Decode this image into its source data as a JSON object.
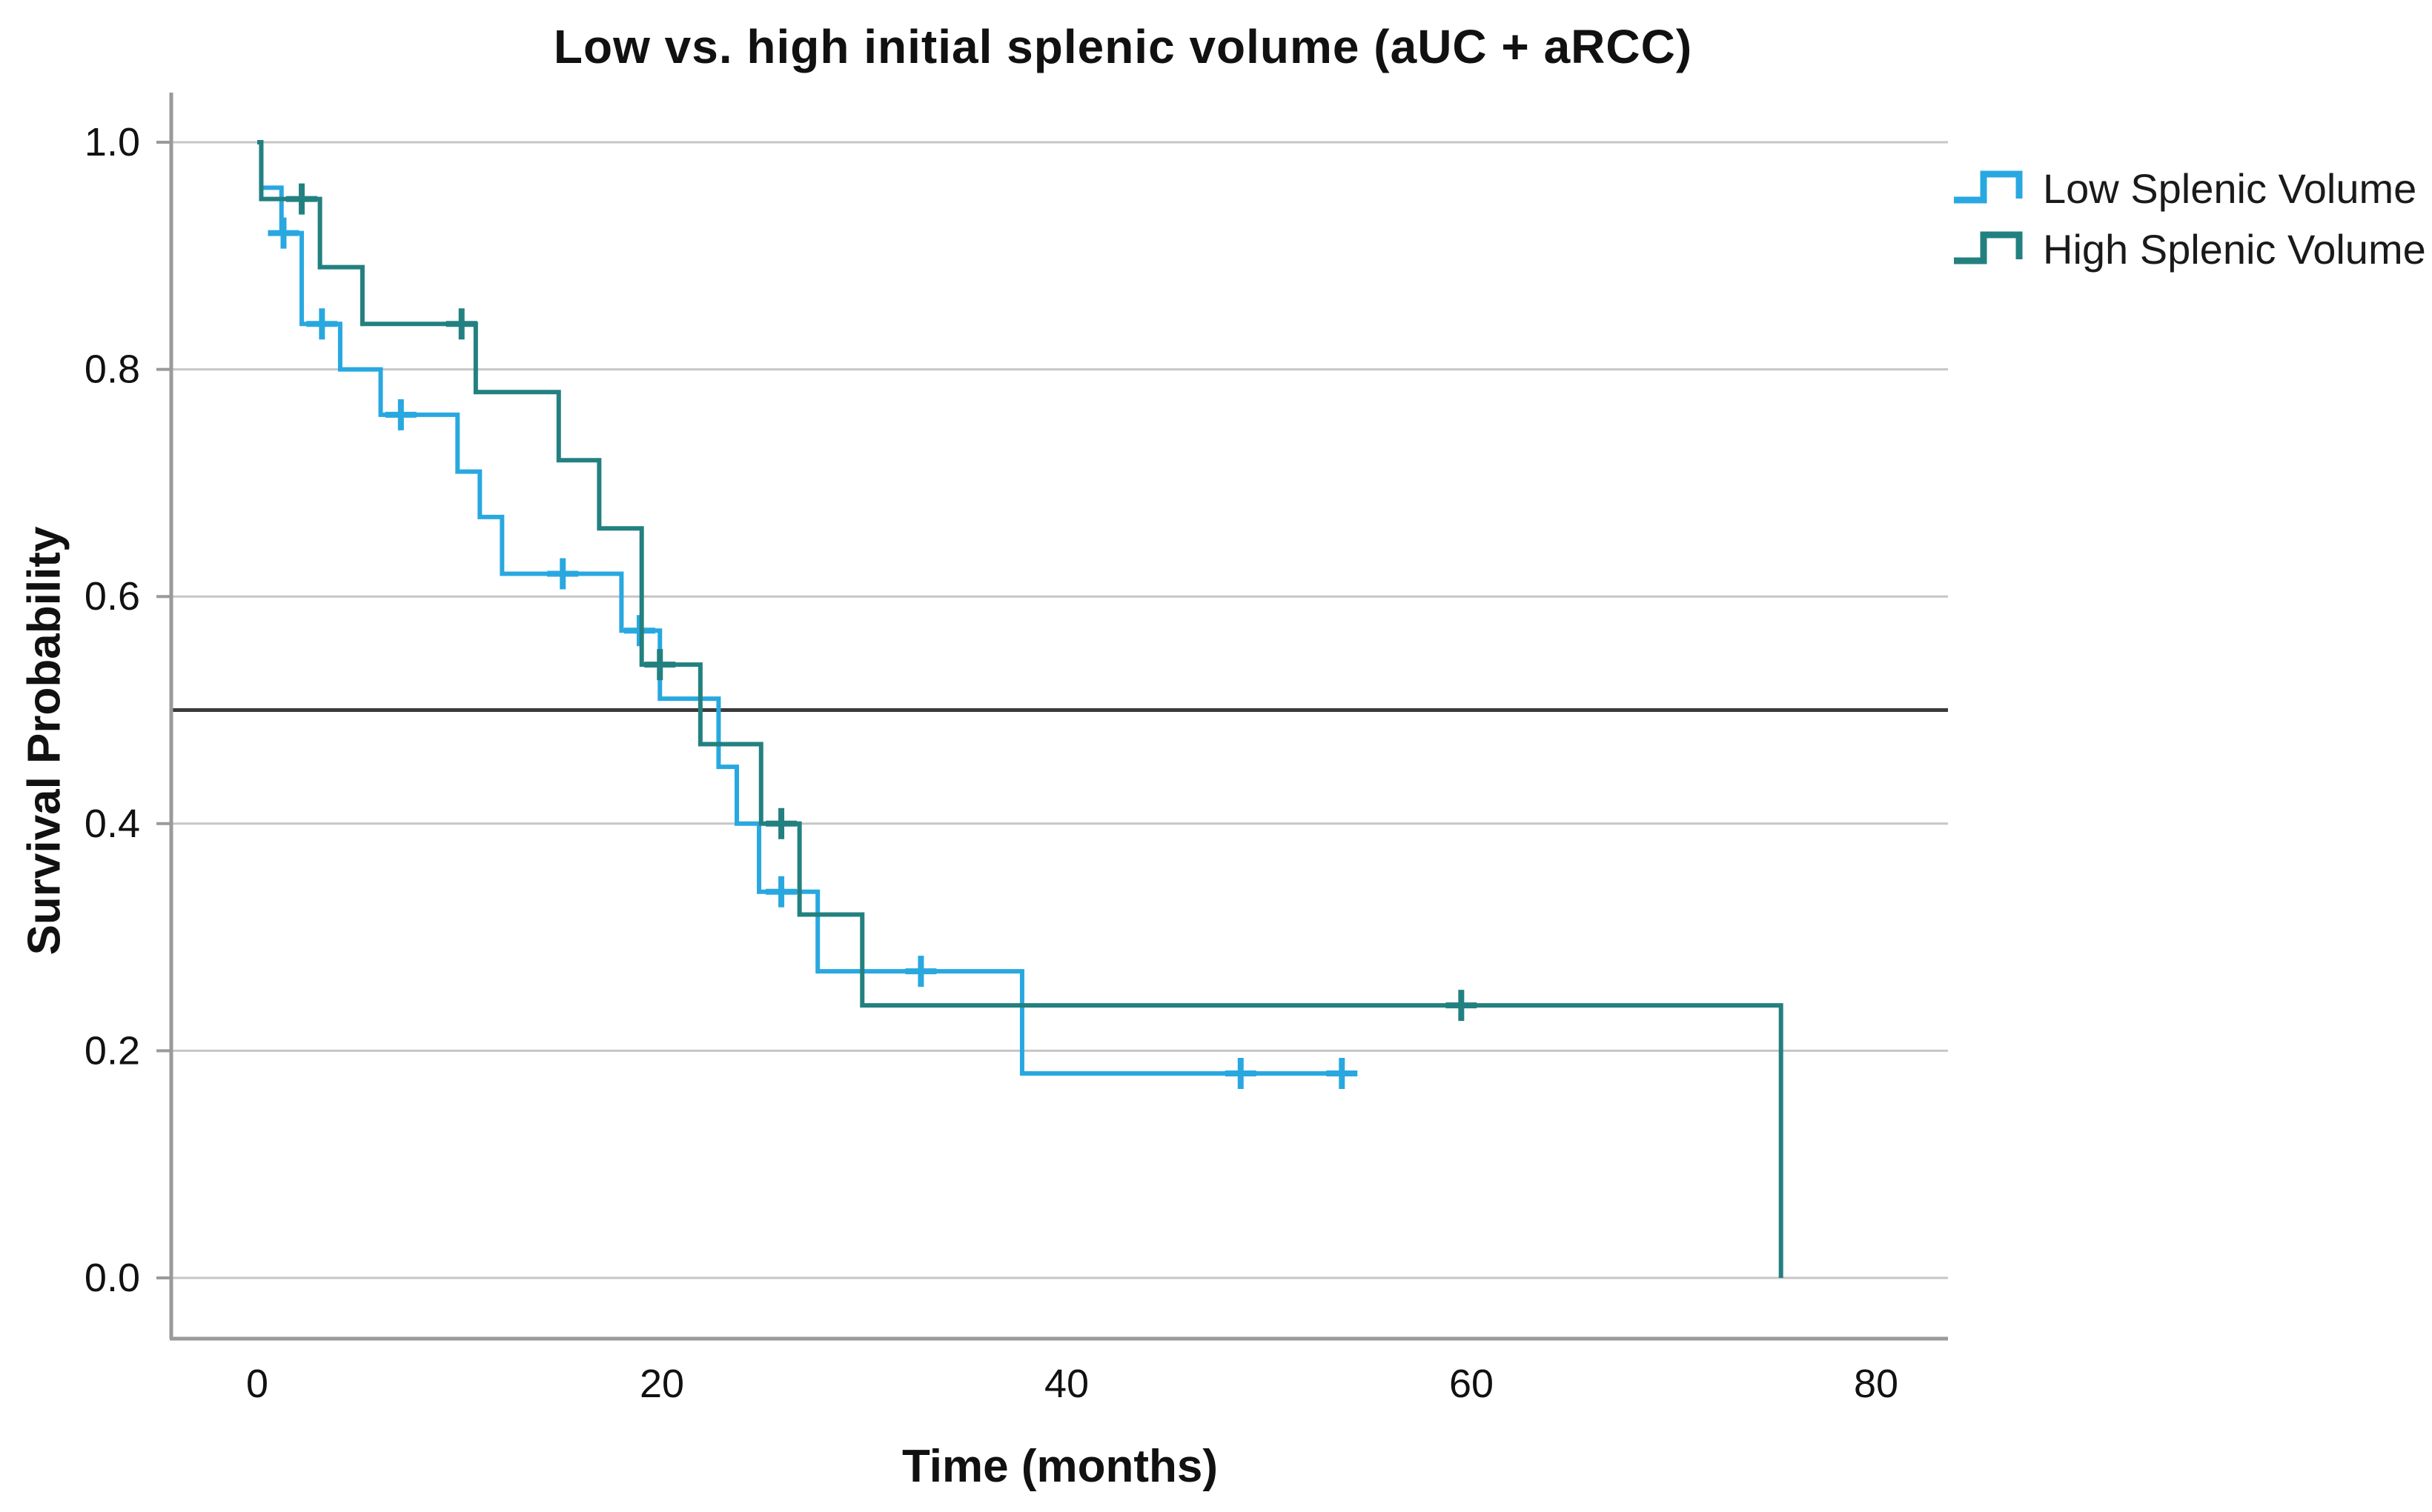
{
  "chart_data": {
    "type": "line",
    "subtype": "kaplan-meier-step",
    "title": "Low vs. high initial splenic volume (aUC + aRCC)",
    "xlabel": "Time (months)",
    "ylabel": "Survival Probability",
    "x_ticks": [
      0,
      20,
      40,
      60,
      80
    ],
    "y_ticks": [
      0.0,
      0.2,
      0.4,
      0.6,
      0.8,
      1.0
    ],
    "xlim": [
      -4.2,
      83.5
    ],
    "ylim": [
      -0.05,
      1.05
    ],
    "grid": "horizontal-only",
    "reference_line_y": 0.5,
    "legend_position": "top-right",
    "colors": {
      "gridline": "#c6c6c6",
      "reference_line": "#3a3a3a",
      "axis_line": "#9a9a9a",
      "text": "#111111"
    },
    "series": [
      {
        "name": "Low Splenic Volume",
        "color": "#29a8e0",
        "steps": [
          [
            0,
            1.0
          ],
          [
            0.2,
            0.96
          ],
          [
            1.2,
            0.92
          ],
          [
            2.2,
            0.84
          ],
          [
            4.1,
            0.8
          ],
          [
            6.1,
            0.76
          ],
          [
            9.9,
            0.71
          ],
          [
            11.0,
            0.67
          ],
          [
            12.1,
            0.62
          ],
          [
            18.0,
            0.57
          ],
          [
            19.9,
            0.51
          ],
          [
            22.8,
            0.45
          ],
          [
            23.7,
            0.4
          ],
          [
            24.8,
            0.34
          ],
          [
            27.7,
            0.27
          ],
          [
            37.8,
            0.18
          ]
        ],
        "end_time": 54.3,
        "drops_to_zero": false,
        "censors": [
          [
            1.3,
            0.92
          ],
          [
            3.2,
            0.84
          ],
          [
            7.1,
            0.76
          ],
          [
            15.1,
            0.62
          ],
          [
            18.9,
            0.57
          ],
          [
            25.9,
            0.34
          ],
          [
            32.8,
            0.27
          ],
          [
            48.6,
            0.18
          ],
          [
            53.6,
            0.18
          ]
        ]
      },
      {
        "name": "High Splenic Volume",
        "color": "#238080",
        "steps": [
          [
            0,
            1.0
          ],
          [
            0.2,
            0.95
          ],
          [
            3.1,
            0.89
          ],
          [
            5.2,
            0.84
          ],
          [
            10.8,
            0.78
          ],
          [
            14.9,
            0.72
          ],
          [
            16.9,
            0.66
          ],
          [
            19.0,
            0.54
          ],
          [
            21.9,
            0.47
          ],
          [
            24.9,
            0.4
          ],
          [
            26.8,
            0.32
          ],
          [
            29.9,
            0.24
          ],
          [
            75.3,
            0.0
          ]
        ],
        "end_time": 75.3,
        "drops_to_zero": true,
        "censors": [
          [
            2.2,
            0.95
          ],
          [
            10.1,
            0.84
          ],
          [
            19.9,
            0.54
          ],
          [
            25.9,
            0.4
          ],
          [
            59.5,
            0.24
          ]
        ]
      }
    ]
  }
}
